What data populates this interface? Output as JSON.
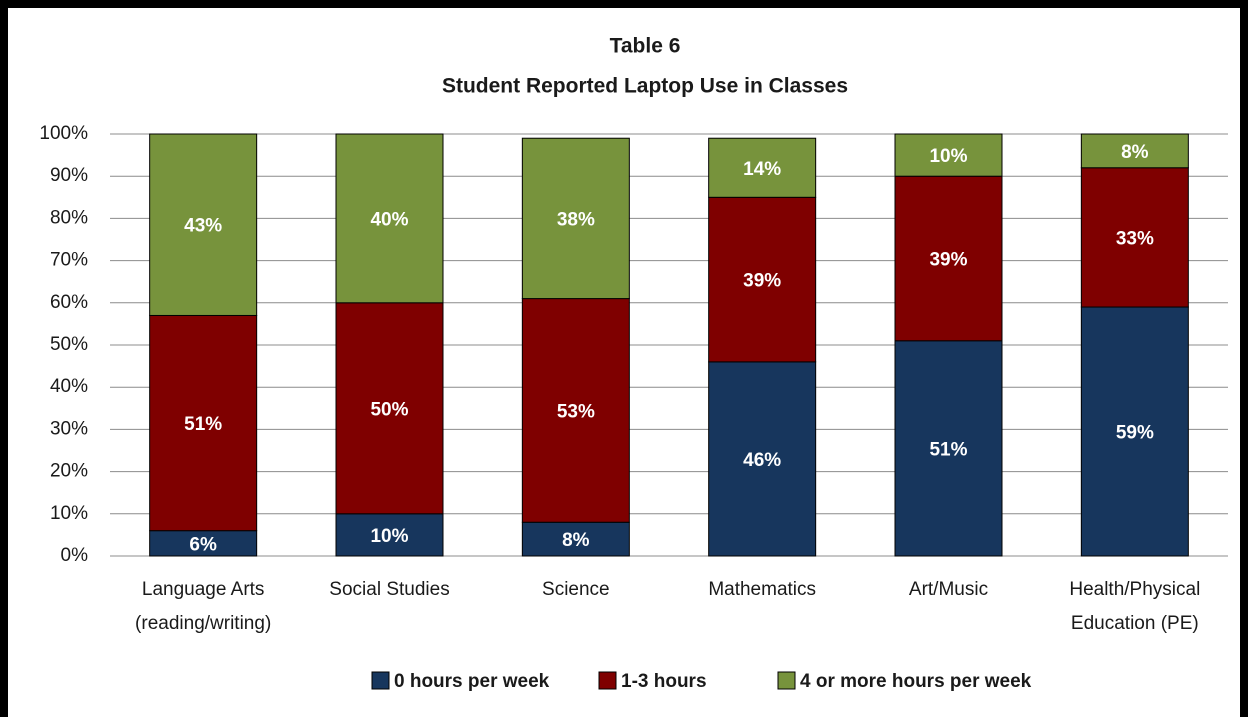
{
  "chart_data": {
    "type": "stacked_bar",
    "title": "Table 6",
    "subtitle": "Student Reported Laptop Use in Classes",
    "categories": [
      [
        "Language Arts",
        "(reading/writing)"
      ],
      [
        "Social Studies"
      ],
      [
        "Science"
      ],
      [
        "Mathematics"
      ],
      [
        "Art/Music"
      ],
      [
        "Health/Physical",
        "Education (PE)"
      ]
    ],
    "series": [
      {
        "name": "0 hours per week",
        "color": "#17365d",
        "values": [
          6,
          10,
          8,
          46,
          51,
          59
        ],
        "value_labels": [
          "6%",
          "10%",
          "8%",
          "46%",
          "51%",
          "59%"
        ]
      },
      {
        "name": "1-3 hours",
        "color": "#7f0000",
        "values": [
          51,
          50,
          53,
          39,
          39,
          33
        ],
        "value_labels": [
          "51%",
          "50%",
          "53%",
          "39%",
          "39%",
          "33%"
        ]
      },
      {
        "name": "4 or more hours per week",
        "color": "#77933c",
        "values": [
          43,
          40,
          38,
          14,
          10,
          8
        ],
        "value_labels": [
          "43%",
          "40%",
          "38%",
          "14%",
          "10%",
          "8%"
        ]
      }
    ],
    "ylim": [
      0,
      100
    ],
    "yticks": [
      {
        "value": 0,
        "label": "0%"
      },
      {
        "value": 10,
        "label": "10%"
      },
      {
        "value": 20,
        "label": "20%"
      },
      {
        "value": 30,
        "label": "30%"
      },
      {
        "value": 40,
        "label": "40%"
      },
      {
        "value": 50,
        "label": "50%"
      },
      {
        "value": 60,
        "label": "60%"
      },
      {
        "value": 70,
        "label": "70%"
      },
      {
        "value": 80,
        "label": "80%"
      },
      {
        "value": 90,
        "label": "90%"
      },
      {
        "value": 100,
        "label": "100%"
      }
    ],
    "grid": true,
    "legend": "bottom"
  }
}
